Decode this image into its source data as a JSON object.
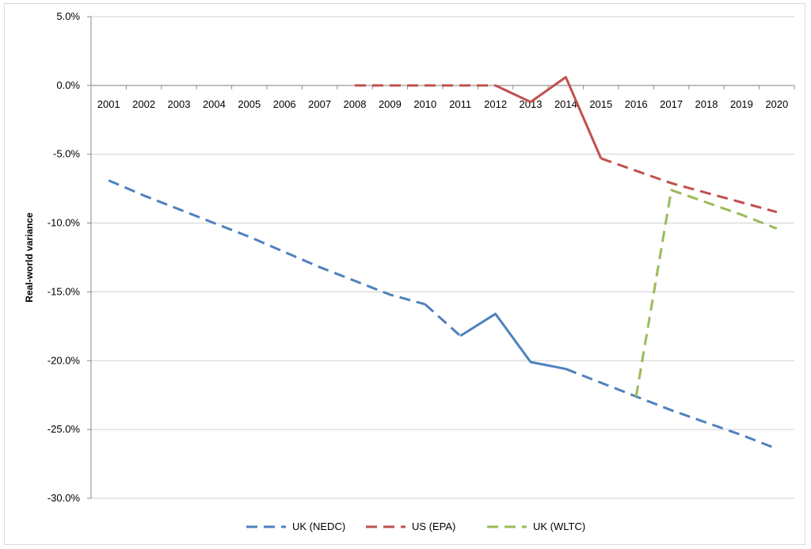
{
  "chart_data": {
    "type": "line",
    "ylabel": "Real-world variance",
    "ylim": [
      -30,
      5
    ],
    "y_ticks": [
      "5.0%",
      "0.0%",
      "-5.0%",
      "-10.0%",
      "-15.0%",
      "-20.0%",
      "-25.0%",
      "-30.0%"
    ],
    "y_tick_values": [
      5,
      0,
      -5,
      -10,
      -15,
      -20,
      -25,
      -30
    ],
    "categories": [
      "2001",
      "2002",
      "2003",
      "2004",
      "2005",
      "2006",
      "2007",
      "2008",
      "2009",
      "2010",
      "2011",
      "2012",
      "2013",
      "2014",
      "2015",
      "2016",
      "2017",
      "2018",
      "2019",
      "2020"
    ],
    "grid": true,
    "legend_position": "bottom",
    "series": [
      {
        "name": "UK (NEDC)",
        "color": "#4f81bd",
        "values": [
          -6.9,
          -8.0,
          -9.0,
          -10.0,
          -11.0,
          -12.1,
          -13.2,
          -14.2,
          -15.2,
          -15.9,
          -18.2,
          -16.6,
          -20.1,
          -20.6,
          -21.6,
          -22.6,
          -23.6,
          -24.5,
          -25.4,
          -26.4
        ],
        "segments": [
          {
            "from": "2001",
            "to": "2010",
            "style": "dashed"
          },
          {
            "from": "2010",
            "to": "2011",
            "style": "dashed"
          },
          {
            "from": "2011",
            "to": "2014",
            "style": "solid"
          },
          {
            "from": "2014",
            "to": "2020",
            "style": "dashed"
          }
        ]
      },
      {
        "name": "US (EPA)",
        "color": "#c0504d",
        "values": [
          null,
          null,
          null,
          null,
          null,
          null,
          null,
          0.0,
          0.0,
          0.0,
          0.0,
          0.0,
          -1.2,
          0.6,
          -5.3,
          -6.2,
          -7.1,
          -7.8,
          -8.5,
          -9.2
        ],
        "segments": [
          {
            "from": "2008",
            "to": "2012",
            "style": "dashed"
          },
          {
            "from": "2012",
            "to": "2015",
            "style": "solid"
          },
          {
            "from": "2015",
            "to": "2020",
            "style": "dashed"
          }
        ]
      },
      {
        "name": "UK (WLTC)",
        "color": "#9bbb59",
        "values": [
          null,
          null,
          null,
          null,
          null,
          null,
          null,
          null,
          null,
          null,
          null,
          null,
          null,
          null,
          null,
          -22.6,
          -7.6,
          -8.5,
          -9.4,
          -10.4
        ],
        "segments": [
          {
            "from": "2016",
            "to": "2020",
            "style": "dashed"
          }
        ]
      }
    ]
  }
}
